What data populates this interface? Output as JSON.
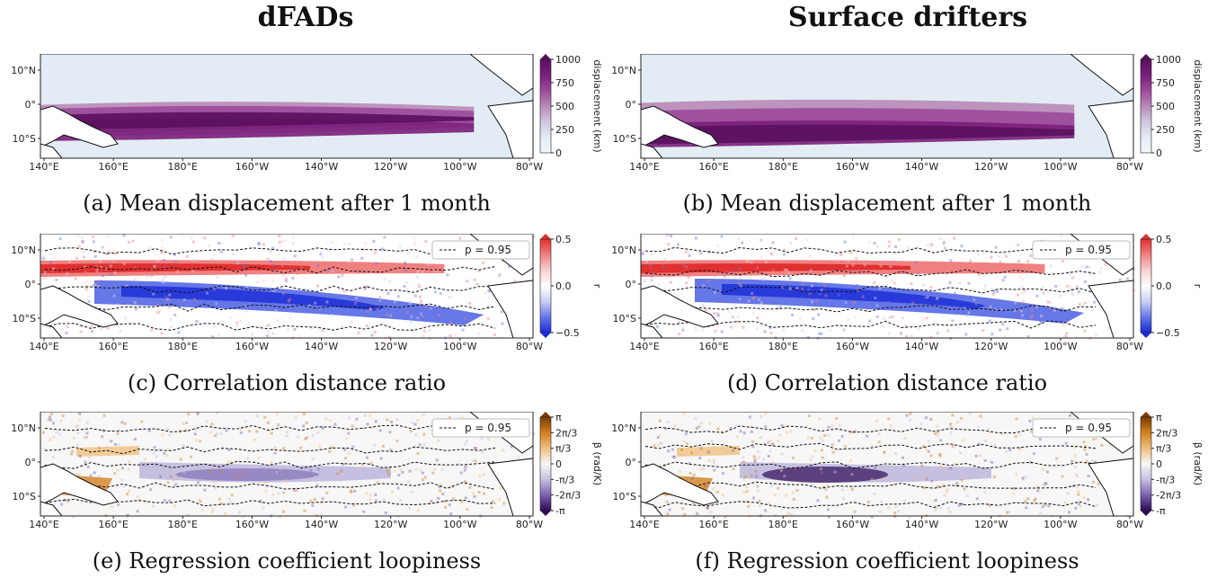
{
  "columns": [
    "dFADs",
    "Surface drifters"
  ],
  "lon_ticks": [
    "140°E",
    "160°E",
    "180°E",
    "160°W",
    "140°W",
    "120°W",
    "100°W",
    "80°W"
  ],
  "lat_ticks": [
    "10°N",
    "0°",
    "10°S"
  ],
  "rows": [
    {
      "captions": [
        "(a) Mean displacement after 1 month",
        "(b) Mean displacement after 1 month"
      ],
      "cbar_label": "displacement (km)",
      "cbar_ticks": [
        "1000",
        "750",
        "500",
        "250",
        "0"
      ],
      "colors": [
        "#5a0f5e",
        "#7a1f7a",
        "#9b4a9a",
        "#b88ab8",
        "#cfc6de",
        "#e3ecf4",
        "#f4f7fb"
      ],
      "legend": ""
    },
    {
      "captions": [
        "(c) Correlation distance ratio",
        "(d) Correlation distance ratio"
      ],
      "cbar_label": "r",
      "cbar_ticks": [
        "0.5",
        "0.0",
        "−0.5"
      ],
      "colors": [
        "#e03030",
        "#f08080",
        "#f8d0d0",
        "#ffffff",
        "#c8cff5",
        "#6677e8",
        "#1a2bd6"
      ],
      "legend": "p = 0.95"
    },
    {
      "captions": [
        "(e) Regression coefficient loopiness",
        "(f) Regression coefficient loopiness"
      ],
      "cbar_label": "β (rad/K)",
      "cbar_ticks": [
        "π",
        "2π/3",
        "π/3",
        "0",
        "-π/3",
        "-2π/3",
        "-π"
      ],
      "colors": [
        "#7a3d00",
        "#d2801e",
        "#f0c080",
        "#f7f7f7",
        "#c6c0e0",
        "#7a62b0",
        "#2d0a55"
      ],
      "legend": "p = 0.95"
    }
  ],
  "chart_data": [
    {
      "type": "heatmap",
      "panel": "(a)",
      "title": "Mean displacement after 1 month",
      "column": "dFADs",
      "colorbar": {
        "label": "displacement (km)",
        "range": [
          0,
          1000
        ]
      },
      "x_range": [
        "140°E",
        "80°W"
      ],
      "y_range": [
        "15°S",
        "15°N"
      ],
      "peak_region": "equatorial band 0–5°N, maximum near 100°W–90°W"
    },
    {
      "type": "heatmap",
      "panel": "(b)",
      "title": "Mean displacement after 1 month",
      "column": "Surface drifters",
      "colorbar": {
        "label": "displacement (km)",
        "range": [
          0,
          1000
        ]
      },
      "x_range": [
        "140°E",
        "80°W"
      ],
      "y_range": [
        "15°S",
        "15°N"
      ],
      "peak_region": "equatorial band 0–3°S, maximum near 110°W–90°W"
    },
    {
      "type": "heatmap",
      "panel": "(c)",
      "title": "Correlation distance ratio",
      "column": "dFADs",
      "colorbar": {
        "label": "r",
        "range": [
          -0.5,
          0.5
        ]
      },
      "legend": "p = 0.95",
      "pattern": "positive r near 3–5°N, negative r along equator to 5°S"
    },
    {
      "type": "heatmap",
      "panel": "(d)",
      "title": "Correlation distance ratio",
      "column": "Surface drifters",
      "colorbar": {
        "label": "r",
        "range": [
          -0.5,
          0.5
        ]
      },
      "legend": "p = 0.95",
      "pattern": "positive r near 3–5°N, negative r along 0–10°S"
    },
    {
      "type": "heatmap",
      "panel": "(e)",
      "title": "Regression coefficient loopiness",
      "column": "dFADs",
      "colorbar": {
        "label": "β (rad/K)",
        "range": [
          "-π",
          "π"
        ]
      },
      "legend": "p = 0.95",
      "pattern": "weak negative β along equator, positive near 160°E 10°S"
    },
    {
      "type": "heatmap",
      "panel": "(f)",
      "title": "Regression coefficient loopiness",
      "column": "Surface drifters",
      "colorbar": {
        "label": "β (rad/K)",
        "range": [
          "-π",
          "π"
        ]
      },
      "legend": "p = 0.95",
      "pattern": "negative β concentrated 180°E–150°W near 5°S"
    }
  ]
}
